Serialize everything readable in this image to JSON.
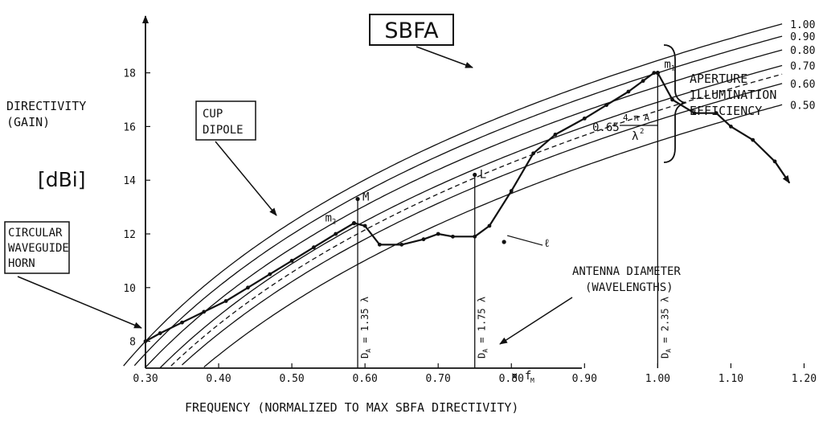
{
  "chart_data": {
    "type": "line",
    "title": "",
    "xlabel": "FREQUENCY (NORMALIZED TO MAX SBFA DIRECTIVITY)",
    "ylabel": "DIRECTIVITY (GAIN)",
    "ylabel_lines": [
      "DIRECTIVITY",
      "(GAIN)"
    ],
    "y_unit": "[dBi]",
    "x_suffix": "× f",
    "x_suffix_sub": "M",
    "xlim": [
      0.3,
      1.2
    ],
    "ylim": [
      7,
      19
    ],
    "x_ticks": [
      0.3,
      0.4,
      0.5,
      0.6,
      0.7,
      0.8,
      0.9,
      1.0,
      1.1,
      1.2
    ],
    "x_tick_labels": [
      "0.30",
      "0.40",
      "0.50",
      "0.60",
      "0.70",
      "0.80",
      "0.90",
      "1.00",
      "1.10",
      "1.20"
    ],
    "y_ticks": [
      8,
      10,
      12,
      14,
      16,
      18
    ],
    "y_tick_labels": [
      "8",
      "10",
      "12",
      "14",
      "16",
      "18"
    ],
    "grid": false,
    "legend": "none",
    "efficiency_curves": {
      "efficiencies": [
        1.0,
        0.9,
        0.8,
        0.7,
        0.6,
        0.5
      ],
      "labels": [
        "1.00",
        "0.90",
        "0.80",
        "0.70",
        "0.60",
        "0.50"
      ],
      "dashed": [
        0.65
      ],
      "dashed_label_prefix": "0.65",
      "formula_top": "4 π A",
      "formula_bottom": "λ",
      "formula_exp": "2",
      "bracket_label": [
        "APERTURE",
        "ILLUMINATION",
        "EFFICIENCY"
      ],
      "x_end": 1.17
    },
    "series": [
      {
        "name": "",
        "x": [
          0.3,
          0.32,
          0.35,
          0.38,
          0.41,
          0.44,
          0.47,
          0.5,
          0.53,
          0.56,
          0.585,
          0.6,
          0.62,
          0.65,
          0.68,
          0.7,
          0.72,
          0.75,
          0.77,
          0.8,
          0.83,
          0.86,
          0.9,
          0.93,
          0.96,
          0.98,
          0.995,
          1.0,
          1.02,
          1.05,
          1.08,
          1.1,
          1.13,
          1.16,
          1.18
        ],
        "y": [
          8.0,
          8.3,
          8.7,
          9.1,
          9.5,
          10.0,
          10.5,
          11.0,
          11.5,
          12.0,
          12.4,
          12.3,
          11.6,
          11.6,
          11.8,
          12.0,
          11.9,
          11.9,
          12.3,
          13.6,
          15.0,
          15.7,
          16.3,
          16.8,
          17.3,
          17.7,
          18.0,
          18.0,
          17.0,
          16.5,
          16.5,
          16.0,
          15.5,
          14.7,
          13.9
        ]
      }
    ],
    "markers": [
      {
        "label": "m",
        "sub": "1",
        "x": 1.0,
        "y": 18.0
      },
      {
        "label": "m",
        "sub": "2",
        "x": 0.585,
        "y": 12.4
      },
      {
        "label": "M",
        "sub": "",
        "x": 0.59,
        "y": 13.3
      },
      {
        "label": "L",
        "sub": "",
        "x": 0.75,
        "y": 14.2
      },
      {
        "label": "ℓ",
        "sub": "",
        "x": 0.79,
        "y": 11.7
      }
    ],
    "diameter_lines": [
      {
        "x": 0.59,
        "label": "D",
        "sub": "A",
        "value": " = 1.35 λ",
        "y_top": 13.3
      },
      {
        "x": 0.75,
        "label": "D",
        "sub": "A",
        "value": " = 1.75 λ",
        "y_top": 14.2
      },
      {
        "x": 1.0,
        "label": "D",
        "sub": "A",
        "value": " = 2.35 λ",
        "y_top": 18.0
      }
    ],
    "annotations": {
      "sbfa": "SBFA",
      "cup_dipole": [
        "CUP",
        "DIPOLE"
      ],
      "horn": [
        "CIRCULAR",
        "WAVEGUIDE",
        "HORN"
      ],
      "diameter": [
        "ANTENNA DIAMETER",
        "(WAVELENGTHS)"
      ]
    }
  }
}
